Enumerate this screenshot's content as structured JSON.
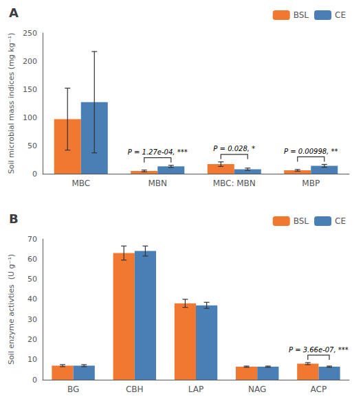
{
  "chart_data": [
    {
      "type": "bar",
      "title": "A",
      "categories": [
        "MBC",
        "MBN",
        "MBC: MBN",
        "MBP"
      ],
      "series": [
        {
          "name": "BSL",
          "color": "#F07830",
          "values": [
            97,
            5,
            17,
            6
          ],
          "errors": [
            55,
            1.5,
            4,
            1.5
          ]
        },
        {
          "name": "CE",
          "color": "#4A7FB5",
          "values": [
            127,
            13,
            8,
            14
          ],
          "errors": [
            90,
            2,
            2,
            2.5
          ]
        }
      ],
      "ylabel": "Soil microbial mass indices (mg kg⁻¹)",
      "ylim": [
        0,
        250
      ],
      "yticks": [
        0,
        50,
        100,
        150,
        200,
        250
      ],
      "legend": "upper right",
      "annotations": [
        {
          "category": "MBN",
          "text": "P = 1.27e-04, ***"
        },
        {
          "category": "MBC: MBN",
          "text": "P = 0.028, *"
        },
        {
          "category": "MBP",
          "text": "P = 0.00998, **"
        }
      ]
    },
    {
      "type": "bar",
      "title": "B",
      "categories": [
        "BG",
        "CBH",
        "LAP",
        "NAG",
        "ACP"
      ],
      "series": [
        {
          "name": "BSL",
          "color": "#F07830",
          "values": [
            7.0,
            63.0,
            38.0,
            6.5,
            8.0
          ],
          "errors": [
            0.5,
            3.5,
            2.0,
            0.3,
            0.5
          ]
        },
        {
          "name": "CE",
          "color": "#4A7FB5",
          "values": [
            7.0,
            64.0,
            37.0,
            6.5,
            6.5
          ],
          "errors": [
            0.5,
            2.5,
            1.5,
            0.3,
            0.3
          ]
        }
      ],
      "ylabel": "Soil enzyme activties  (U g⁻¹)",
      "ylim": [
        0,
        70
      ],
      "yticks": [
        0,
        10,
        20,
        30,
        40,
        50,
        60,
        70
      ],
      "legend": "upper right",
      "annotations": [
        {
          "category": "ACP",
          "text": "P = 3.66e-07, ***"
        }
      ]
    }
  ]
}
